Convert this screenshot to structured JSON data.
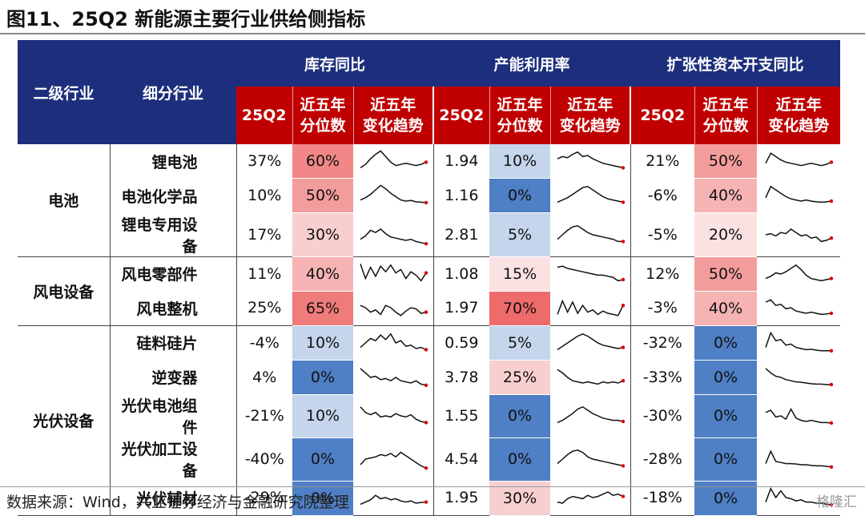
{
  "title": "图11、25Q2 新能源主要行业供给侧指标",
  "header": {
    "col_level1": "二级行业",
    "col_level2": "细分行业",
    "groups": [
      "库存同比",
      "产能利用率",
      "扩张性资本开支同比"
    ],
    "sub_q": "25Q2",
    "sub_pct": "近五年 分位数",
    "sub_trend": "近五年 变化趋势"
  },
  "colors": {
    "header_blue": "#1d2f7c",
    "header_red": "#c00000",
    "pct_0": "#4f7fc4",
    "pct_5": "#c5d5ec",
    "pct_10": "#c5d5ec",
    "pct_15": "#fbe2e2",
    "pct_20": "#fbe2e2",
    "pct_25": "#f8cfcf",
    "pct_30": "#f8cfcf",
    "pct_40": "#f6b3b3",
    "pct_50": "#f39c9c",
    "pct_60": "#f18787",
    "pct_65": "#f07b7b",
    "pct_70": "#ee6b6b",
    "spark_line": "#111111",
    "spark_end": "#e00000"
  },
  "groups": [
    {
      "name": "电池",
      "rows": [
        {
          "name": "锂电池",
          "inv": "37%",
          "inv_p": "60%",
          "cap": "1.94",
          "cap_p": "10%",
          "exp": "21%",
          "exp_p": "50%"
        },
        {
          "name": "电池化学品",
          "inv": "10%",
          "inv_p": "50%",
          "cap": "1.16",
          "cap_p": "0%",
          "exp": "-6%",
          "exp_p": "40%"
        },
        {
          "name": "锂电专用设备",
          "inv": "17%",
          "inv_p": "30%",
          "cap": "2.81",
          "cap_p": "5%",
          "exp": "-5%",
          "exp_p": "20%"
        }
      ]
    },
    {
      "name": "风电设备",
      "rows": [
        {
          "name": "风电零部件",
          "inv": "11%",
          "inv_p": "40%",
          "cap": "1.08",
          "cap_p": "15%",
          "exp": "12%",
          "exp_p": "50%"
        },
        {
          "name": "风电整机",
          "inv": "25%",
          "inv_p": "65%",
          "cap": "1.97",
          "cap_p": "70%",
          "exp": "-3%",
          "exp_p": "40%"
        }
      ]
    },
    {
      "name": "光伏设备",
      "rows": [
        {
          "name": "硅料硅片",
          "inv": "-4%",
          "inv_p": "10%",
          "cap": "0.59",
          "cap_p": "5%",
          "exp": "-32%",
          "exp_p": "0%"
        },
        {
          "name": "逆变器",
          "inv": "4%",
          "inv_p": "0%",
          "cap": "3.78",
          "cap_p": "25%",
          "exp": "-33%",
          "exp_p": "0%"
        },
        {
          "name": "光伏电池组件",
          "inv": "-21%",
          "inv_p": "10%",
          "cap": "1.55",
          "cap_p": "0%",
          "exp": "-30%",
          "exp_p": "0%"
        },
        {
          "name": "光伏加工设备",
          "inv": "-40%",
          "inv_p": "0%",
          "cap": "4.54",
          "cap_p": "0%",
          "exp": "-28%",
          "exp_p": "0%"
        },
        {
          "name": "光伏辅材",
          "inv": "-29%",
          "inv_p": "0%",
          "cap": "1.95",
          "cap_p": "30%",
          "exp": "-18%",
          "exp_p": "0%"
        }
      ]
    }
  ],
  "sparklines": {
    "inv": [
      [
        0.2,
        0.35,
        0.6,
        0.8,
        0.95,
        0.7,
        0.45,
        0.3,
        0.35,
        0.4,
        0.35,
        0.3,
        0.35,
        0.45
      ],
      [
        0.3,
        0.4,
        0.55,
        0.75,
        0.95,
        0.8,
        0.6,
        0.45,
        0.3,
        0.25,
        0.28,
        0.22,
        0.2,
        0.18
      ],
      [
        0.3,
        0.45,
        0.7,
        0.6,
        0.75,
        0.55,
        0.4,
        0.35,
        0.3,
        0.25,
        0.3,
        0.2,
        0.15,
        0.1
      ],
      [
        0.95,
        0.3,
        0.8,
        0.4,
        0.85,
        0.6,
        0.9,
        0.55,
        0.7,
        0.3,
        0.6,
        0.45,
        0.2,
        0.55
      ],
      [
        0.6,
        0.5,
        0.3,
        0.4,
        0.2,
        0.6,
        0.5,
        0.3,
        0.15,
        0.35,
        0.5,
        0.45,
        0.25,
        0.3
      ],
      [
        0.3,
        0.5,
        0.7,
        0.6,
        0.85,
        0.65,
        0.9,
        0.5,
        0.6,
        0.35,
        0.4,
        0.25,
        0.3,
        0.2
      ],
      [
        0.9,
        0.7,
        0.5,
        0.55,
        0.4,
        0.45,
        0.35,
        0.5,
        0.35,
        0.3,
        0.25,
        0.35,
        0.2,
        0.15
      ],
      [
        0.9,
        0.65,
        0.55,
        0.65,
        0.45,
        0.5,
        0.45,
        0.6,
        0.5,
        0.45,
        0.55,
        0.35,
        0.25,
        0.2
      ],
      [
        0.25,
        0.5,
        0.55,
        0.6,
        0.7,
        0.65,
        0.75,
        0.6,
        0.8,
        0.65,
        0.5,
        0.35,
        0.2,
        0.1
      ],
      [
        0.2,
        0.3,
        0.4,
        0.6,
        0.45,
        0.5,
        0.4,
        0.45,
        0.35,
        0.3,
        0.35,
        0.25,
        0.28,
        0.3
      ]
    ],
    "cap": [
      [
        0.6,
        0.7,
        0.65,
        0.8,
        0.9,
        0.7,
        0.75,
        0.6,
        0.5,
        0.4,
        0.35,
        0.3,
        0.25,
        0.2
      ],
      [
        0.2,
        0.3,
        0.4,
        0.55,
        0.7,
        0.85,
        0.9,
        0.75,
        0.6,
        0.45,
        0.35,
        0.3,
        0.25,
        0.2
      ],
      [
        0.3,
        0.5,
        0.7,
        0.85,
        0.9,
        0.75,
        0.6,
        0.5,
        0.45,
        0.4,
        0.35,
        0.3,
        0.2,
        0.2
      ],
      [
        0.8,
        0.85,
        0.75,
        0.7,
        0.65,
        0.6,
        0.55,
        0.5,
        0.45,
        0.45,
        0.4,
        0.35,
        0.2,
        0.25
      ],
      [
        0.2,
        0.8,
        0.3,
        0.75,
        0.25,
        0.6,
        0.3,
        0.4,
        0.2,
        0.35,
        0.25,
        0.2,
        0.15,
        0.6
      ],
      [
        0.2,
        0.35,
        0.5,
        0.65,
        0.8,
        0.9,
        0.8,
        0.65,
        0.5,
        0.4,
        0.35,
        0.3,
        0.25,
        0.3
      ],
      [
        0.85,
        0.7,
        0.5,
        0.35,
        0.3,
        0.25,
        0.3,
        0.25,
        0.2,
        0.3,
        0.25,
        0.3,
        0.25,
        0.35
      ],
      [
        0.2,
        0.3,
        0.45,
        0.6,
        0.8,
        0.9,
        0.75,
        0.6,
        0.5,
        0.4,
        0.35,
        0.3,
        0.3,
        0.25
      ],
      [
        0.3,
        0.5,
        0.7,
        0.85,
        0.9,
        0.8,
        0.6,
        0.5,
        0.45,
        0.4,
        0.35,
        0.3,
        0.25,
        0.2
      ],
      [
        0.3,
        0.25,
        0.45,
        0.55,
        0.5,
        0.45,
        0.6,
        0.5,
        0.55,
        0.65,
        0.75,
        0.6,
        0.65,
        0.55
      ]
    ],
    "exp": [
      [
        0.4,
        0.85,
        0.7,
        0.55,
        0.45,
        0.4,
        0.35,
        0.3,
        0.35,
        0.4,
        0.35,
        0.3,
        0.35,
        0.45
      ],
      [
        0.4,
        0.9,
        0.75,
        0.6,
        0.45,
        0.35,
        0.3,
        0.25,
        0.3,
        0.25,
        0.22,
        0.2,
        0.22,
        0.25
      ],
      [
        0.5,
        0.55,
        0.45,
        0.6,
        0.55,
        0.75,
        0.6,
        0.45,
        0.5,
        0.35,
        0.4,
        0.2,
        0.25,
        0.35
      ],
      [
        0.3,
        0.4,
        0.55,
        0.5,
        0.6,
        0.75,
        0.9,
        0.7,
        0.45,
        0.3,
        0.25,
        0.2,
        0.25,
        0.3
      ],
      [
        0.75,
        0.85,
        0.6,
        0.65,
        0.45,
        0.5,
        0.35,
        0.3,
        0.25,
        0.3,
        0.25,
        0.2,
        0.22,
        0.25
      ],
      [
        0.3,
        0.95,
        0.6,
        0.65,
        0.4,
        0.45,
        0.3,
        0.25,
        0.2,
        0.22,
        0.18,
        0.15,
        0.15,
        0.15
      ],
      [
        0.9,
        0.7,
        0.55,
        0.5,
        0.4,
        0.35,
        0.3,
        0.28,
        0.25,
        0.22,
        0.2,
        0.2,
        0.18,
        0.18
      ],
      [
        0.65,
        0.75,
        0.45,
        0.5,
        0.35,
        0.8,
        0.4,
        0.3,
        0.25,
        0.3,
        0.25,
        0.2,
        0.2,
        0.18
      ],
      [
        0.3,
        0.85,
        0.4,
        0.35,
        0.3,
        0.3,
        0.28,
        0.25,
        0.25,
        0.22,
        0.2,
        0.2,
        0.18,
        0.15
      ],
      [
        0.3,
        0.9,
        0.5,
        0.8,
        0.5,
        0.45,
        0.35,
        0.4,
        0.3,
        0.3,
        0.25,
        0.25,
        0.2,
        0.18
      ]
    ]
  },
  "source": "数据来源：Wind，兴业证券经济与金融研究院整理",
  "watermark": "格隆汇"
}
